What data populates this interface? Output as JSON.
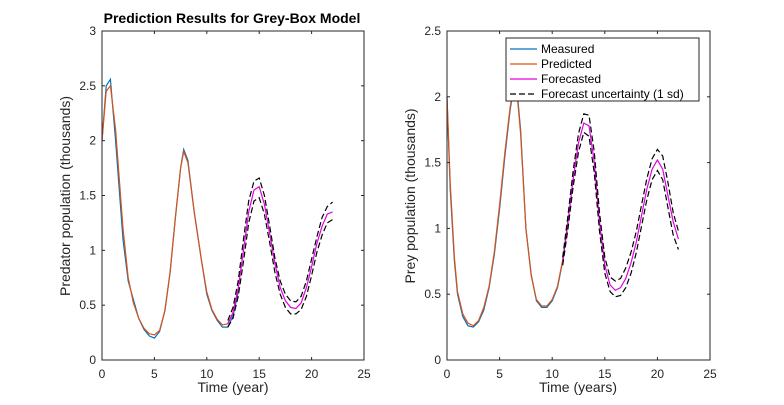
{
  "chart_data": [
    {
      "type": "line",
      "title": "Prediction Results for Grey-Box Model",
      "xlabel": "Time (year)",
      "ylabel": "Predator population (thousands)",
      "xlim": [
        0,
        25
      ],
      "ylim": [
        0,
        3
      ],
      "xticks": [
        "0",
        "5",
        "10",
        "15",
        "20",
        "25"
      ],
      "yticks": [
        "0",
        "0.5",
        "1",
        "1.5",
        "2",
        "2.5",
        "3"
      ],
      "grid": false,
      "series": [
        {
          "name": "Measured",
          "color": "#0072BD",
          "x": [
            0,
            0.4,
            0.8,
            1.3,
            2,
            2.5,
            3,
            3.5,
            4,
            4.5,
            5,
            5.5,
            6,
            6.5,
            7,
            7.5,
            7.8,
            8.2,
            8.8,
            9.5,
            10,
            10.5,
            11,
            11.5,
            12,
            12.5,
            13
          ],
          "y": [
            2.0,
            2.5,
            2.56,
            2.0,
            1.1,
            0.72,
            0.55,
            0.38,
            0.28,
            0.22,
            0.2,
            0.26,
            0.45,
            0.8,
            1.3,
            1.75,
            1.92,
            1.82,
            1.35,
            0.9,
            0.6,
            0.45,
            0.36,
            0.3,
            0.3,
            0.4,
            0.62
          ]
        },
        {
          "name": "Predicted",
          "color": "#D95319",
          "x": [
            0,
            0.4,
            0.8,
            1.3,
            2,
            2.5,
            3,
            3.5,
            4,
            4.5,
            5,
            5.5,
            6,
            6.5,
            7,
            7.5,
            7.8,
            8.2,
            8.8,
            9.5,
            10,
            10.5,
            11,
            11.5,
            12,
            12.5,
            13
          ],
          "y": [
            2.0,
            2.45,
            2.5,
            2.1,
            1.2,
            0.75,
            0.52,
            0.38,
            0.29,
            0.24,
            0.23,
            0.27,
            0.45,
            0.8,
            1.3,
            1.75,
            1.9,
            1.8,
            1.35,
            0.9,
            0.62,
            0.46,
            0.37,
            0.32,
            0.33,
            0.43,
            0.65
          ]
        },
        {
          "name": "Forecasted",
          "color": "#E000E0",
          "x": [
            12,
            12.5,
            13,
            13.5,
            14,
            14.5,
            15,
            15.5,
            16,
            16.5,
            17,
            17.5,
            18,
            18.5,
            19,
            19.5,
            20,
            20.5,
            21,
            21.5,
            22
          ],
          "y": [
            0.33,
            0.43,
            0.65,
            1.0,
            1.35,
            1.55,
            1.58,
            1.42,
            1.15,
            0.88,
            0.66,
            0.54,
            0.48,
            0.47,
            0.52,
            0.66,
            0.85,
            1.06,
            1.22,
            1.33,
            1.35
          ]
        },
        {
          "name": "Forecast uncertainty (1 sd)",
          "color": "#000000",
          "upper": {
            "x": [
              12,
              12.5,
              13,
              13.5,
              14,
              14.5,
              15,
              15.5,
              16,
              16.5,
              17,
              17.5,
              18,
              18.5,
              19,
              19.5,
              20,
              20.5,
              21,
              21.5,
              22
            ],
            "y": [
              0.36,
              0.48,
              0.72,
              1.1,
              1.45,
              1.63,
              1.66,
              1.5,
              1.22,
              0.93,
              0.72,
              0.6,
              0.54,
              0.53,
              0.58,
              0.72,
              0.92,
              1.12,
              1.3,
              1.4,
              1.44
            ]
          },
          "lower": {
            "x": [
              12,
              12.5,
              13,
              13.5,
              14,
              14.5,
              15,
              15.5,
              16,
              16.5,
              17,
              17.5,
              18,
              18.5,
              19,
              19.5,
              20,
              20.5,
              21,
              21.5,
              22
            ],
            "y": [
              0.3,
              0.38,
              0.58,
              0.9,
              1.25,
              1.45,
              1.48,
              1.33,
              1.07,
              0.8,
              0.6,
              0.48,
              0.42,
              0.42,
              0.46,
              0.58,
              0.77,
              0.98,
              1.14,
              1.25,
              1.28
            ]
          }
        }
      ]
    },
    {
      "type": "line",
      "title": "",
      "xlabel": "Time (years)",
      "ylabel": "Prey population (thousands)",
      "xlim": [
        0,
        25
      ],
      "ylim": [
        0,
        2.5
      ],
      "xticks": [
        "0",
        "5",
        "10",
        "15",
        "20",
        "25"
      ],
      "yticks": [
        "0",
        "0.5",
        "1",
        "1.5",
        "2",
        "2.5"
      ],
      "grid": false,
      "legend": "top-right",
      "series": [
        {
          "name": "Measured",
          "color": "#0072BD",
          "x": [
            0,
            0.3,
            0.7,
            1,
            1.5,
            2,
            2.5,
            3,
            3.5,
            4,
            4.5,
            5,
            5.5,
            6,
            6.3,
            6.6,
            7,
            7.5,
            8,
            8.5,
            9,
            9.5,
            10,
            10.5,
            11,
            11.5
          ],
          "y": [
            2.0,
            1.3,
            0.75,
            0.5,
            0.33,
            0.26,
            0.25,
            0.29,
            0.38,
            0.55,
            0.8,
            1.15,
            1.55,
            1.9,
            2.05,
            2.1,
            1.75,
            1.0,
            0.65,
            0.45,
            0.4,
            0.4,
            0.45,
            0.55,
            0.75,
            1.05
          ]
        },
        {
          "name": "Predicted",
          "color": "#D95319",
          "x": [
            0,
            0.3,
            0.7,
            1,
            1.5,
            2,
            2.5,
            3,
            3.5,
            4,
            4.5,
            5,
            5.5,
            6,
            6.3,
            6.6,
            7,
            7.5,
            8,
            8.5,
            9,
            9.5,
            10,
            10.5,
            11,
            11.5
          ],
          "y": [
            2.0,
            1.35,
            0.78,
            0.52,
            0.35,
            0.28,
            0.26,
            0.3,
            0.4,
            0.56,
            0.82,
            1.18,
            1.58,
            1.92,
            2.06,
            2.08,
            1.72,
            1.0,
            0.64,
            0.46,
            0.41,
            0.41,
            0.46,
            0.56,
            0.76,
            1.05
          ]
        },
        {
          "name": "Forecasted",
          "color": "#E000E0",
          "x": [
            11,
            11.5,
            12,
            12.5,
            13,
            13.5,
            14,
            14.5,
            15,
            15.5,
            16,
            16.5,
            17,
            17.5,
            18,
            18.5,
            19,
            19.5,
            20,
            20.5,
            21,
            21.5,
            22
          ],
          "y": [
            0.75,
            1.05,
            1.38,
            1.65,
            1.8,
            1.78,
            1.5,
            1.05,
            0.72,
            0.57,
            0.53,
            0.55,
            0.62,
            0.74,
            0.9,
            1.1,
            1.3,
            1.45,
            1.52,
            1.45,
            1.25,
            1.05,
            0.92
          ]
        },
        {
          "name": "Forecast uncertainty (1 sd)",
          "color": "#000000",
          "upper": {
            "x": [
              11,
              11.5,
              12,
              12.5,
              13,
              13.5,
              14,
              14.5,
              15,
              15.5,
              16,
              16.5,
              17,
              17.5,
              18,
              18.5,
              19,
              19.5,
              20,
              20.5,
              21,
              21.5,
              22
            ],
            "y": [
              0.78,
              1.1,
              1.44,
              1.72,
              1.87,
              1.86,
              1.58,
              1.12,
              0.78,
              0.63,
              0.6,
              0.62,
              0.7,
              0.82,
              0.98,
              1.18,
              1.38,
              1.53,
              1.6,
              1.55,
              1.35,
              1.12,
              0.98
            ]
          },
          "lower": {
            "x": [
              11,
              11.5,
              12,
              12.5,
              13,
              13.5,
              14,
              14.5,
              15,
              15.5,
              16,
              16.5,
              17,
              17.5,
              18,
              18.5,
              19,
              19.5,
              20,
              20.5,
              21,
              21.5,
              22
            ],
            "y": [
              0.72,
              1.0,
              1.32,
              1.58,
              1.73,
              1.7,
              1.42,
              0.98,
              0.66,
              0.52,
              0.48,
              0.49,
              0.55,
              0.66,
              0.82,
              1.02,
              1.22,
              1.37,
              1.44,
              1.37,
              1.16,
              0.95,
              0.84
            ]
          }
        }
      ]
    }
  ]
}
